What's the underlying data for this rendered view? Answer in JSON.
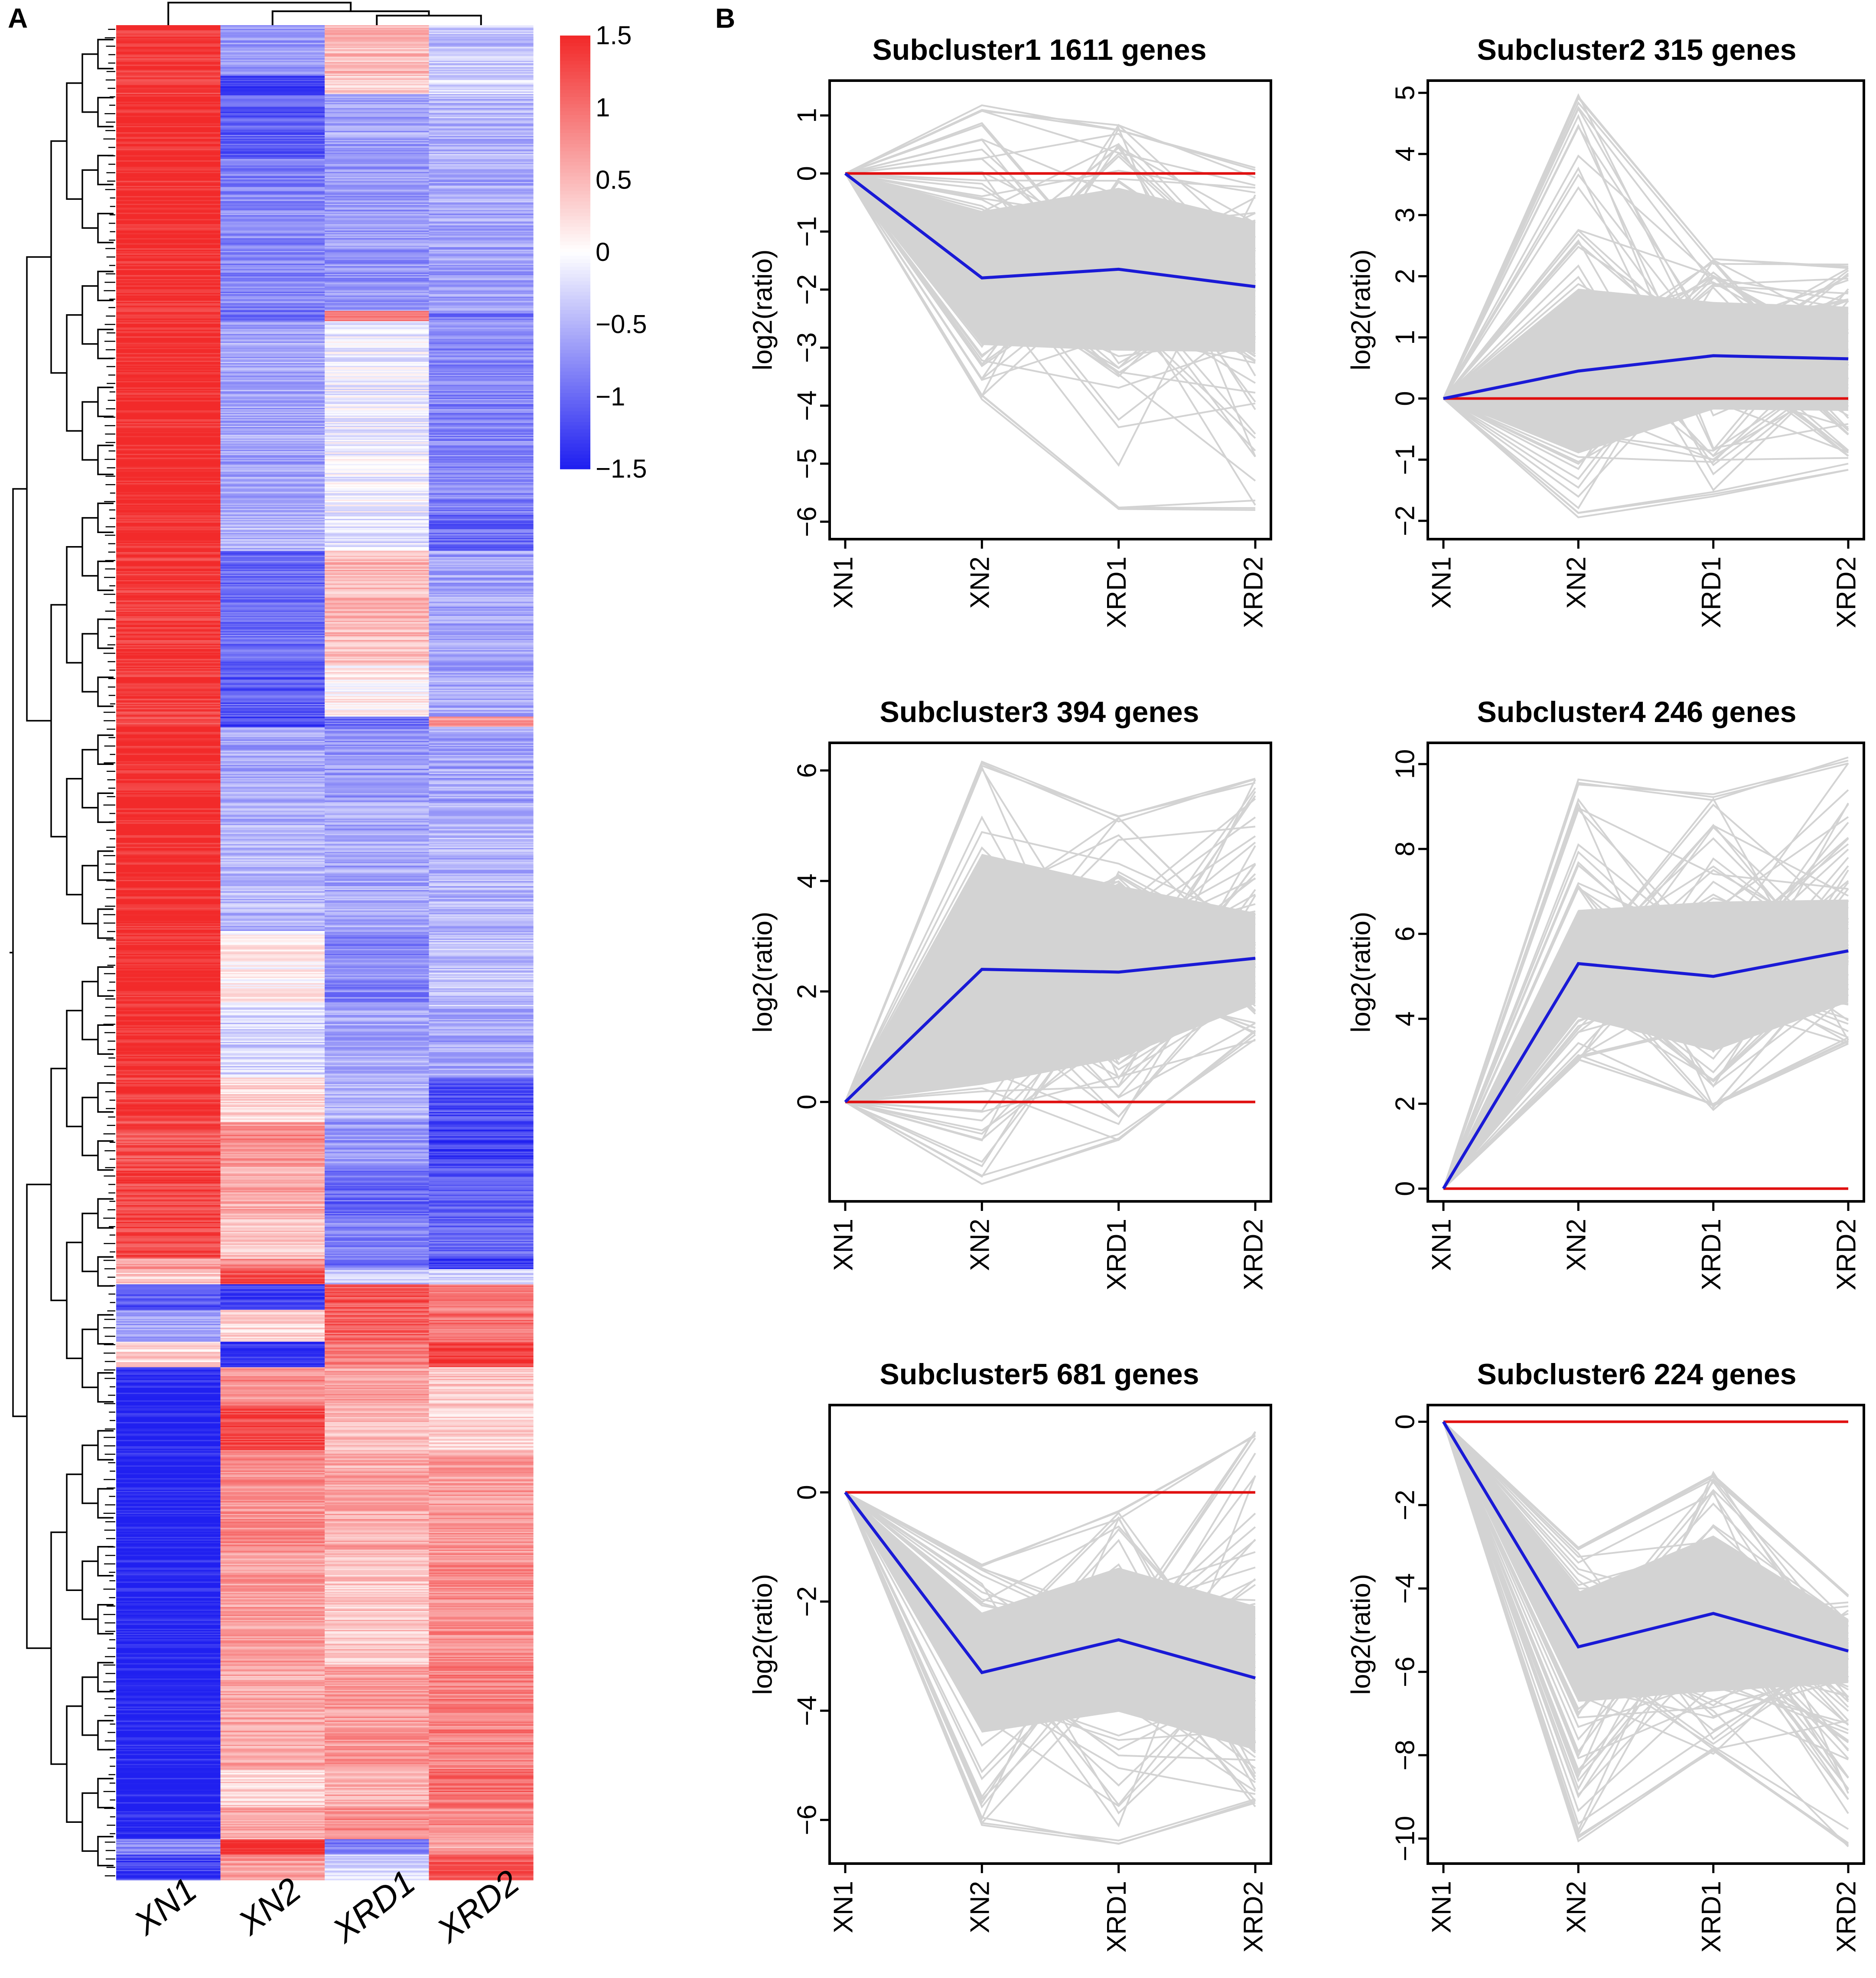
{
  "panel_labels": [
    "A",
    "B"
  ],
  "chart_data": [
    {
      "type": "heatmap",
      "panel": "A",
      "columns": [
        "XN1",
        "XN2",
        "XRD1",
        "XRD2"
      ],
      "colorbar": {
        "min": -1.5,
        "max": 1.5,
        "low_color": "#2020f0",
        "mid_color": "#ffffff",
        "high_color": "#f22a2a",
        "ticks": [
          {
            "value": 1.5,
            "label": "1.5"
          },
          {
            "value": 1,
            "label": "1"
          },
          {
            "value": 0.5,
            "label": "0.5"
          },
          {
            "value": 0,
            "label": "0"
          },
          {
            "value": -0.5,
            "label": "−0.5"
          },
          {
            "value": -1,
            "label": "−1"
          },
          {
            "value": -1.5,
            "label": "−1.5"
          }
        ]
      },
      "row_blocks": [
        {
          "rows": 40,
          "values": [
            1.4,
            -0.7,
            0.5,
            -0.4
          ]
        },
        {
          "rows": 14,
          "values": [
            1.4,
            -1.3,
            0.3,
            -0.3
          ]
        },
        {
          "rows": 50,
          "values": [
            1.5,
            -1.1,
            -0.6,
            -0.5
          ]
        },
        {
          "rows": 120,
          "values": [
            1.5,
            -0.8,
            -0.7,
            -0.6
          ]
        },
        {
          "rows": 8,
          "values": [
            1.3,
            -1.0,
            0.8,
            -0.9
          ]
        },
        {
          "rows": 150,
          "values": [
            1.5,
            -0.6,
            -0.1,
            -0.8
          ]
        },
        {
          "rows": 30,
          "values": [
            1.5,
            -0.5,
            -0.2,
            -1.0
          ]
        },
        {
          "rows": 90,
          "values": [
            1.4,
            -1.0,
            0.5,
            -0.6
          ]
        },
        {
          "rows": 40,
          "values": [
            1.4,
            -1.1,
            0.1,
            -0.6
          ]
        },
        {
          "rows": 8,
          "values": [
            1.3,
            -1.3,
            -1.0,
            0.7
          ]
        },
        {
          "rows": 60,
          "values": [
            1.5,
            -0.6,
            -0.7,
            -0.6
          ]
        },
        {
          "rows": 100,
          "values": [
            1.5,
            -0.5,
            -0.6,
            -0.5
          ]
        },
        {
          "rows": 60,
          "values": [
            1.5,
            0.1,
            -0.8,
            -0.4
          ]
        },
        {
          "rows": 55,
          "values": [
            1.5,
            -0.3,
            -0.6,
            -0.6
          ]
        },
        {
          "rows": 35,
          "values": [
            1.4,
            0.3,
            -0.5,
            -1.2
          ]
        },
        {
          "rows": 35,
          "values": [
            1.2,
            0.8,
            -0.7,
            -1.3
          ]
        },
        {
          "rows": 40,
          "values": [
            1.3,
            0.6,
            -1.0,
            -1.1
          ]
        },
        {
          "rows": 32,
          "values": [
            1.3,
            0.4,
            -0.8,
            -1.0
          ]
        },
        {
          "rows": 8,
          "values": [
            0.7,
            0.9,
            -0.9,
            -1.4
          ]
        },
        {
          "rows": 12,
          "values": [
            0.4,
            1.3,
            -0.4,
            -0.2
          ]
        },
        {
          "rows": 20,
          "values": [
            -1.1,
            -1.3,
            1.2,
            0.9
          ]
        },
        {
          "rows": 25,
          "values": [
            -0.6,
            0.3,
            1.1,
            1.0
          ]
        },
        {
          "rows": 20,
          "values": [
            0.3,
            -1.4,
            0.9,
            1.4
          ]
        },
        {
          "rows": 30,
          "values": [
            -1.5,
            0.8,
            0.7,
            0.4
          ]
        },
        {
          "rows": 35,
          "values": [
            -1.5,
            1.3,
            0.5,
            0.3
          ]
        },
        {
          "rows": 80,
          "values": [
            -1.5,
            0.8,
            0.6,
            0.7
          ]
        },
        {
          "rows": 90,
          "values": [
            -1.5,
            0.7,
            0.4,
            0.8
          ]
        },
        {
          "rows": 80,
          "values": [
            -1.5,
            0.6,
            0.7,
            0.9
          ]
        },
        {
          "rows": 30,
          "values": [
            -1.5,
            0.3,
            0.6,
            1.0
          ]
        },
        {
          "rows": 25,
          "values": [
            -1.5,
            0.6,
            0.8,
            0.8
          ]
        },
        {
          "rows": 12,
          "values": [
            -0.8,
            1.5,
            -0.9,
            0.6
          ]
        },
        {
          "rows": 20,
          "values": [
            -1.3,
            0.7,
            -0.3,
            1.2
          ]
        }
      ],
      "xlabel": "",
      "ylabel": ""
    },
    {
      "type": "line",
      "panel": "B",
      "title": "Subcluster1",
      "genes": "1611 genes",
      "categories": [
        "XN1",
        "XN2",
        "XRD1",
        "XRD2"
      ],
      "xlabel": "",
      "ylabel": "log2(ratio)",
      "ylim": [
        -6.3,
        1.6
      ],
      "yticks": [
        1,
        0,
        -1,
        -2,
        -3,
        -4,
        -5,
        -6
      ],
      "series": [
        {
          "name": "mean",
          "color": "#1a1ad6",
          "values": [
            0,
            -1.8,
            -1.65,
            -1.95
          ]
        },
        {
          "name": "baseline",
          "color": "#e01010",
          "values": [
            0,
            0,
            0,
            0
          ]
        }
      ],
      "background_range": {
        "upper": [
          0,
          1.2,
          0.9,
          0.1
        ],
        "lower": [
          0,
          -3.9,
          -5.9,
          -5.8
        ]
      }
    },
    {
      "type": "line",
      "panel": "B",
      "title": "Subcluster2",
      "genes": "315 genes",
      "categories": [
        "XN1",
        "XN2",
        "XRD1",
        "XRD2"
      ],
      "xlabel": "",
      "ylabel": "log2(ratio)",
      "ylim": [
        -2.3,
        5.2
      ],
      "yticks": [
        5,
        4,
        3,
        2,
        1,
        0,
        -1,
        -2
      ],
      "series": [
        {
          "name": "mean",
          "color": "#1a1ad6",
          "values": [
            0,
            0.45,
            0.7,
            0.65
          ]
        },
        {
          "name": "baseline",
          "color": "#e01010",
          "values": [
            0,
            0,
            0,
            0
          ]
        }
      ],
      "background_range": {
        "upper": [
          0,
          5.0,
          2.3,
          2.2
        ],
        "lower": [
          0,
          -2.0,
          -1.7,
          -1.2
        ]
      }
    },
    {
      "type": "line",
      "panel": "B",
      "title": "Subcluster3",
      "genes": "394 genes",
      "categories": [
        "XN1",
        "XN2",
        "XRD1",
        "XRD2"
      ],
      "xlabel": "",
      "ylabel": "log2(ratio)",
      "ylim": [
        -1.8,
        6.5
      ],
      "yticks": [
        6,
        4,
        2,
        0
      ],
      "series": [
        {
          "name": "mean",
          "color": "#1a1ad6",
          "values": [
            0,
            2.4,
            2.35,
            2.6
          ]
        },
        {
          "name": "baseline",
          "color": "#e01010",
          "values": [
            0,
            0,
            0,
            0
          ]
        }
      ],
      "background_range": {
        "upper": [
          0,
          6.2,
          5.2,
          5.9
        ],
        "lower": [
          0,
          -1.5,
          -0.7,
          1.1
        ]
      }
    },
    {
      "type": "line",
      "panel": "B",
      "title": "Subcluster4",
      "genes": "246 genes",
      "categories": [
        "XN1",
        "XN2",
        "XRD1",
        "XRD2"
      ],
      "xlabel": "",
      "ylabel": "log2(ratio)",
      "ylim": [
        -0.3,
        10.5
      ],
      "yticks": [
        10,
        8,
        6,
        4,
        2,
        0
      ],
      "series": [
        {
          "name": "mean",
          "color": "#1a1ad6",
          "values": [
            0,
            5.3,
            5.0,
            5.6
          ]
        },
        {
          "name": "baseline",
          "color": "#e01010",
          "values": [
            0,
            0,
            0,
            0
          ]
        }
      ],
      "background_range": {
        "upper": [
          0,
          9.7,
          9.3,
          10.2
        ],
        "lower": [
          0,
          3.0,
          1.8,
          3.4
        ]
      }
    },
    {
      "type": "line",
      "panel": "B",
      "title": "Subcluster5",
      "genes": "681 genes",
      "categories": [
        "XN1",
        "XN2",
        "XRD1",
        "XRD2"
      ],
      "xlabel": "",
      "ylabel": "log2(ratio)",
      "ylim": [
        -6.8,
        1.6
      ],
      "yticks": [
        0,
        -2,
        -4,
        -6
      ],
      "series": [
        {
          "name": "mean",
          "color": "#1a1ad6",
          "values": [
            0,
            -3.3,
            -2.7,
            -3.4
          ]
        },
        {
          "name": "baseline",
          "color": "#e01010",
          "values": [
            0,
            0,
            0,
            0
          ]
        }
      ],
      "background_range": {
        "upper": [
          0,
          -1.3,
          -0.3,
          1.2
        ],
        "lower": [
          0,
          -6.1,
          -6.5,
          -5.8
        ]
      }
    },
    {
      "type": "line",
      "panel": "B",
      "title": "Subcluster6",
      "genes": "224 genes",
      "categories": [
        "XN1",
        "XN2",
        "XRD1",
        "XRD2"
      ],
      "xlabel": "",
      "ylabel": "log2(ratio)",
      "ylim": [
        -10.6,
        0.4
      ],
      "yticks": [
        0,
        -2,
        -4,
        -6,
        -8,
        -10
      ],
      "series": [
        {
          "name": "mean",
          "color": "#1a1ad6",
          "values": [
            0,
            -5.4,
            -4.6,
            -5.5
          ]
        },
        {
          "name": "baseline",
          "color": "#e01010",
          "values": [
            0,
            0,
            0,
            0
          ]
        }
      ],
      "background_range": {
        "upper": [
          0,
          -3.0,
          -1.2,
          -4.1
        ],
        "lower": [
          0,
          -10.1,
          -8.0,
          -10.3
        ]
      }
    }
  ]
}
